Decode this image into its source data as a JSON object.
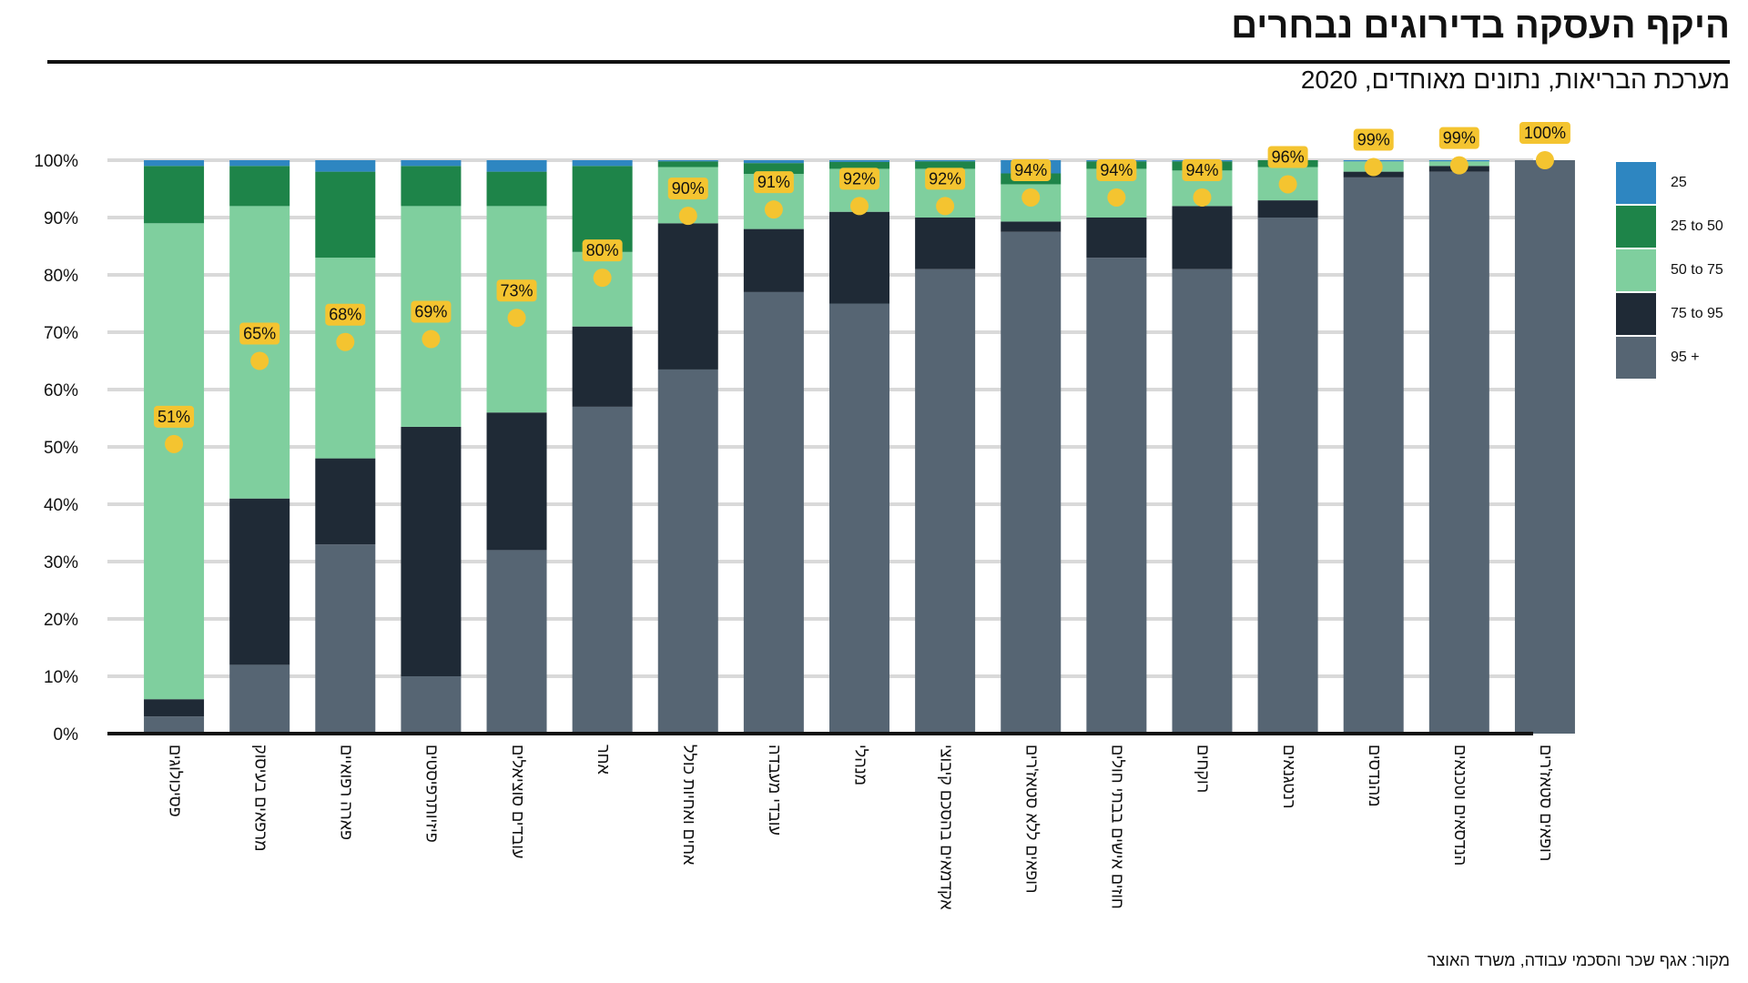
{
  "title": "היקף העסקה בדירוגים נבחרים",
  "subtitle": "מערכת הבריאות, נתונים מאוחדים, 2020",
  "source": "מקור: אגף שכר והסכמי עבודה, משרד האוצר",
  "colors": {
    "s25": "#2e86c1",
    "s25to50": "#1e8449",
    "s50to75": "#7fcf9e",
    "s75to95": "#1f2a36",
    "s95plus": "#566573",
    "marker": "#f4c430",
    "grid": "#d9d9d9",
    "axis": "#111111"
  },
  "legend": [
    {
      "label": "25",
      "color": "#2e86c1"
    },
    {
      "label": "25 to 50",
      "color": "#1e8449"
    },
    {
      "label": "50 to 75",
      "color": "#7fcf9e"
    },
    {
      "label": "75 to 95",
      "color": "#1f2a36"
    },
    {
      "label": "95 +",
      "color": "#566573"
    }
  ],
  "chart_data": {
    "type": "bar",
    "stacked": true,
    "ylim": [
      0,
      100
    ],
    "yticks": [
      "0%",
      "10%",
      "20%",
      "30%",
      "40%",
      "50%",
      "60%",
      "70%",
      "80%",
      "90%",
      "100%"
    ],
    "grid": true,
    "legend_position": "right",
    "categories": [
      "פסיכולוגים",
      "מרפאים בעיסוק",
      "פארה רפואיים",
      "פיזיותרפיסטים",
      "עובדים סוציאלים",
      "אחר",
      "אחים ואחיות כולל",
      "עובדי מעבדה",
      "מנהלי",
      "אקדמאים בהסכם קיבוצי",
      "רופאים ללא סטאז'רים",
      "חוזים אישים בבתי חולים",
      "רוקחים",
      "רנטגנאים",
      "מהנדסים",
      "הנדסאים וטכנאים",
      "רופאים סטאז'רים"
    ],
    "series": [
      {
        "name": "95 +",
        "values": [
          3,
          12,
          33,
          10,
          32,
          57,
          63.5,
          77,
          75,
          81,
          87.5,
          83,
          81,
          90,
          97,
          98,
          100
        ]
      },
      {
        "name": "75 to 95",
        "values": [
          3,
          29,
          15,
          43.5,
          24,
          14,
          25.5,
          11,
          16,
          9,
          1.8,
          7,
          11,
          3,
          1,
          1,
          0
        ]
      },
      {
        "name": "50 to 75",
        "values": [
          83,
          51,
          35,
          38.5,
          36,
          13,
          9.8,
          9.6,
          7.5,
          8.5,
          6.5,
          8.5,
          6.2,
          5.8,
          1.8,
          0.8,
          0
        ]
      },
      {
        "name": "25 to 50",
        "values": [
          10,
          7,
          15,
          7,
          6,
          15,
          1,
          1.9,
          1.2,
          1.3,
          1.9,
          1.3,
          1.6,
          1.2,
          0,
          0,
          0
        ]
      },
      {
        "name": "25",
        "values": [
          1,
          1,
          2,
          1,
          2,
          1,
          0.2,
          0.5,
          0.3,
          0.2,
          2.3,
          0.2,
          0.2,
          0,
          0.2,
          0.2,
          0
        ]
      }
    ],
    "markers": [
      {
        "value": 50.5,
        "label": "51%"
      },
      {
        "value": 65,
        "label": "65%"
      },
      {
        "value": 68.3,
        "label": "68%"
      },
      {
        "value": 68.8,
        "label": "69%"
      },
      {
        "value": 72.5,
        "label": "73%"
      },
      {
        "value": 79.5,
        "label": "80%"
      },
      {
        "value": 90.3,
        "label": "90%"
      },
      {
        "value": 91.4,
        "label": "91%"
      },
      {
        "value": 92,
        "label": "92%"
      },
      {
        "value": 92,
        "label": "92%"
      },
      {
        "value": 93.5,
        "label": "94%"
      },
      {
        "value": 93.5,
        "label": "94%"
      },
      {
        "value": 93.5,
        "label": "94%"
      },
      {
        "value": 95.8,
        "label": "96%"
      },
      {
        "value": 98.8,
        "label": "99%"
      },
      {
        "value": 99.1,
        "label": "99%"
      },
      {
        "value": 100,
        "label": "100%"
      }
    ]
  }
}
